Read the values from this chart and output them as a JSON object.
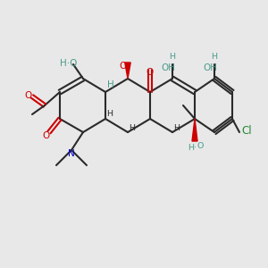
{
  "bg": "#e8e8e8",
  "bond": "#2a2a2a",
  "O_color": "#cc0000",
  "N_color": "#0000cc",
  "Cl_color": "#228833",
  "OH_color": "#4a9a8a",
  "figsize": [
    3.0,
    3.0
  ],
  "dpi": 100,
  "lw": 1.5
}
